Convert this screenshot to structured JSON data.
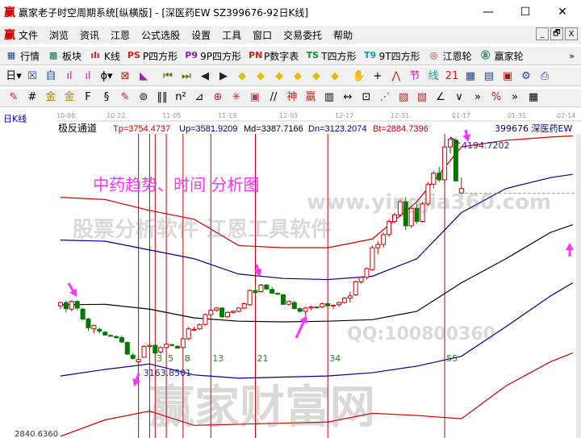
{
  "window": {
    "logo": "赢",
    "title": "赢家老子时空周期系统[纵横版] - [深医药EW  SZ399676-92日K线]",
    "minimize": "—",
    "maximize": "☐",
    "close": "✕"
  },
  "menu": {
    "items": [
      "文件",
      "浏览",
      "资讯",
      "江恩",
      "公式选股",
      "设置",
      "工具",
      "窗口",
      "交易委托",
      "帮助"
    ],
    "mdi": [
      "_",
      "🗗",
      "X"
    ]
  },
  "toolbar1": [
    {
      "icon": "quote-grid-icon",
      "glyph": "▦",
      "label": "行情",
      "color": "#224488"
    },
    {
      "icon": "sector-icon",
      "glyph": "▩",
      "label": "板块",
      "color": "#117744"
    },
    {
      "icon": "kline-icon",
      "glyph": "ılı",
      "label": "K线",
      "color": "#cc2222"
    },
    {
      "icon": "ps-icon",
      "glyph": "PS",
      "label": "P四方形",
      "color": "#cc2222"
    },
    {
      "icon": "p9-icon",
      "glyph": "P9",
      "label": "9P四方形",
      "color": "#8822aa"
    },
    {
      "icon": "pn-icon",
      "glyph": "PN",
      "label": "P数字表",
      "color": "#cc2222"
    },
    {
      "icon": "ts-icon",
      "glyph": "TS",
      "label": "T四方形",
      "color": "#118833"
    },
    {
      "icon": "t9-icon",
      "glyph": "T9",
      "label": "9T四方形",
      "color": "#1199aa"
    },
    {
      "icon": "gann-wheel-icon",
      "glyph": "◎",
      "label": "江恩轮",
      "color": "#aa3322"
    },
    {
      "icon": "yingjia-wheel-icon",
      "glyph": "Ⓑ",
      "label": "赢家轮",
      "color": "#117744"
    }
  ],
  "toolbar1_more": "»",
  "toolbar2": [
    {
      "icon": "period-day-icon",
      "glyph": "日▾",
      "color": "#000"
    },
    {
      "icon": "scale-icon",
      "glyph": "☒",
      "color": "#2244aa"
    },
    {
      "icon": "self-icon",
      "glyph": "自",
      "color": "#2244aa"
    },
    {
      "icon": "bars3-icon",
      "glyph": "ıl",
      "color": "#cc22aa"
    },
    {
      "icon": "bars9-icon",
      "glyph": "ıl",
      "color": "#cc22aa"
    },
    {
      "icon": "candle-type-icon",
      "glyph": "ɸ▾",
      "color": "#000"
    },
    {
      "icon": "extreme-icon",
      "glyph": "⊠",
      "color": "#cc2222"
    },
    {
      "icon": "triangle-icon",
      "glyph": "◣",
      "color": "#aa22aa"
    },
    {
      "icon": "first-icon",
      "glyph": "⏮",
      "color": "#556b00"
    },
    {
      "icon": "last-icon",
      "glyph": "⏭",
      "color": "#556b00"
    },
    {
      "icon": "left-icon",
      "glyph": "◀",
      "color": "#222"
    },
    {
      "icon": "right-icon",
      "glyph": "▶",
      "color": "#222"
    },
    {
      "icon": "diamond-left-icon",
      "glyph": "◆",
      "color": "#e0c000"
    },
    {
      "icon": "diamond-right-icon",
      "glyph": "◆",
      "color": "#e0c000"
    },
    {
      "icon": "diamond-h-icon",
      "glyph": "◆",
      "color": "#e0c000"
    },
    {
      "icon": "diamond-in-icon",
      "glyph": "◆",
      "color": "#e0c000"
    },
    {
      "icon": "diamond-out-icon",
      "glyph": "◆",
      "color": "#e0c000"
    },
    {
      "icon": "diamond-v-icon",
      "glyph": "◆",
      "color": "#e0c000"
    },
    {
      "icon": "hand-icon",
      "glyph": "✋",
      "color": "#000"
    },
    {
      "icon": "crosshair-icon",
      "glyph": "+",
      "color": "#000"
    },
    {
      "icon": "line-icon",
      "glyph": "⋀",
      "color": "#cc2222"
    },
    {
      "icon": "node-icon",
      "glyph": "节",
      "color": "#aa22aa"
    },
    {
      "icon": "draw-icon",
      "glyph": "线",
      "color": "#11aa88"
    },
    {
      "icon": "calendar-icon",
      "glyph": "21",
      "color": "#cc2222"
    },
    {
      "icon": "calculator-icon",
      "glyph": "▦",
      "color": "#224488"
    },
    {
      "icon": "notes-icon",
      "glyph": "▤",
      "color": "#224488"
    },
    {
      "icon": "save-icon",
      "glyph": "▣",
      "color": "#aa1111"
    },
    {
      "icon": "network-icon",
      "glyph": "⚙",
      "color": "#224488"
    },
    {
      "icon": "printer-icon",
      "glyph": "⎙",
      "color": "#224488"
    }
  ],
  "toolbar3": [
    {
      "icon": "pen-icon",
      "glyph": "✎",
      "color": "#cc2222"
    },
    {
      "icon": "grid-lines-icon",
      "glyph": "#",
      "color": "#000"
    },
    {
      "icon": "gold-icon",
      "glyph": "金",
      "color": "#aa8800"
    },
    {
      "icon": "gold2-icon",
      "glyph": "金",
      "color": "#aa8800"
    },
    {
      "icon": "f-icon",
      "glyph": "F",
      "color": "#000"
    },
    {
      "icon": "spiral-icon",
      "glyph": "§",
      "color": "#000"
    },
    {
      "icon": "pen2-icon",
      "glyph": "✎",
      "color": "#cc2222"
    },
    {
      "icon": "circle-icon",
      "glyph": "⊜",
      "color": "#000"
    },
    {
      "icon": "lines-icon",
      "glyph": "‖‖",
      "color": "#000"
    },
    {
      "icon": "n2-icon",
      "glyph": "n²",
      "color": "#000"
    },
    {
      "icon": "fan-icon",
      "glyph": "⊿",
      "color": "#000"
    },
    {
      "icon": "target-icon",
      "glyph": "⊕",
      "color": "#cc2222"
    },
    {
      "icon": "star-icon",
      "glyph": "✳",
      "color": "#cc2222"
    },
    {
      "icon": "square-icon",
      "glyph": "▣",
      "color": "#aa4444"
    },
    {
      "icon": "slash-icon",
      "glyph": "//",
      "color": "#000"
    },
    {
      "icon": "shen-icon",
      "glyph": "神",
      "color": "#cc2222"
    },
    {
      "icon": "ying-icon",
      "glyph": "赢",
      "color": "#cc2222"
    },
    {
      "icon": "ruler-icon",
      "glyph": "▥",
      "color": "#000"
    },
    {
      "icon": "span-icon",
      "glyph": "↔",
      "color": "#000"
    },
    {
      "icon": "box-icon",
      "glyph": "⊡",
      "color": "#000"
    },
    {
      "icon": "fan-red-icon",
      "glyph": "⋰",
      "color": "#cc2222"
    },
    {
      "icon": "grid-red-icon",
      "glyph": "▨",
      "color": "#cc2222"
    },
    {
      "icon": "grid-red2-icon",
      "glyph": "▧",
      "color": "#cc2222"
    },
    {
      "icon": "angle-icon",
      "glyph": "∠",
      "color": "#000"
    },
    {
      "icon": "wave-icon",
      "glyph": "∨",
      "color": "#000"
    }
  ],
  "toolbar3_more": [
    "»",
    "%",
    "»",
    "▦"
  ],
  "chart": {
    "period_label": "日K线",
    "indicator_name": "极反通道",
    "params": [
      {
        "text": "Tp=3754.4737",
        "color": "#cc0000"
      },
      {
        "text": "Up=3581.9209",
        "color": "#000080"
      },
      {
        "text": "Md=3387.7166",
        "color": "#000000"
      },
      {
        "text": "Dn=3123.2074",
        "color": "#000080"
      },
      {
        "text": "Bt=2884.7396",
        "color": "#cc0000"
      }
    ],
    "symbol": "399676  深医药EW",
    "annotation": "中药趋势、时间 分析图",
    "high_label": "4194.7202",
    "low_label": "3163.8501",
    "bottom_price": "2840.6360",
    "fib_labels": [
      "3",
      "5",
      "8",
      "13",
      "21",
      "34",
      "55"
    ],
    "watermarks": [
      "赢家财富网",
      "股票分析软件 江恩工具软件",
      "www.yingjia360.com",
      "QQ:100800360"
    ],
    "colors": {
      "up": "#cc0000",
      "down": "#007700",
      "arrow": "#ff33ff",
      "fib_line": "#cc0000"
    }
  },
  "chart_data": {
    "type": "candlestick",
    "x_ticks": [
      {
        "i": 0,
        "label": "10-08"
      },
      {
        "i": 9,
        "label": "10-22"
      },
      {
        "i": 19,
        "label": "11-05"
      },
      {
        "i": 29,
        "label": "11-19"
      },
      {
        "i": 40,
        "label": "12-03"
      },
      {
        "i": 50,
        "label": "12-17"
      },
      {
        "i": 60,
        "label": "12-31"
      },
      {
        "i": 71,
        "label": "01-17"
      },
      {
        "i": 81,
        "label": "01-31"
      },
      {
        "i": 91,
        "label": "02-14"
      }
    ],
    "price_range": [
      2840.636,
      4210
    ],
    "fib_start_index": 14,
    "fib_offsets": [
      0,
      2,
      3,
      5,
      8,
      13,
      21,
      34,
      55
    ],
    "ohlc": [
      [
        3425,
        3445,
        3410,
        3440
      ],
      [
        3440,
        3448,
        3395,
        3412
      ],
      [
        3410,
        3450,
        3400,
        3445
      ],
      [
        3445,
        3450,
        3405,
        3415
      ],
      [
        3410,
        3415,
        3360,
        3365
      ],
      [
        3365,
        3370,
        3310,
        3325
      ],
      [
        3320,
        3340,
        3300,
        3335
      ],
      [
        3318,
        3325,
        3300,
        3310
      ],
      [
        3305,
        3310,
        3290,
        3292
      ],
      [
        3290,
        3295,
        3285,
        3288
      ],
      [
        3285,
        3290,
        3275,
        3280
      ],
      [
        3280,
        3290,
        3255,
        3260
      ],
      [
        3258,
        3262,
        3200,
        3205
      ],
      [
        3200,
        3210,
        3180,
        3185
      ],
      [
        3170,
        3195,
        3163.85,
        3180
      ],
      [
        3190,
        3245,
        3188,
        3240
      ],
      [
        3240,
        3250,
        3225,
        3245
      ],
      [
        3245,
        3250,
        3200,
        3210
      ],
      [
        3215,
        3240,
        3205,
        3235
      ],
      [
        3235,
        3255,
        3230,
        3250
      ],
      [
        3248,
        3252,
        3240,
        3245
      ],
      [
        3240,
        3245,
        3230,
        3232
      ],
      [
        3235,
        3280,
        3230,
        3275
      ],
      [
        3275,
        3330,
        3268,
        3320
      ],
      [
        3315,
        3330,
        3310,
        3318
      ],
      [
        3320,
        3345,
        3315,
        3340
      ],
      [
        3340,
        3390,
        3335,
        3385
      ],
      [
        3385,
        3410,
        3380,
        3405
      ],
      [
        3405,
        3420,
        3398,
        3415
      ],
      [
        3415,
        3418,
        3370,
        3375
      ],
      [
        3375,
        3400,
        3370,
        3395
      ],
      [
        3395,
        3405,
        3390,
        3400
      ],
      [
        3400,
        3420,
        3395,
        3415
      ],
      [
        3415,
        3440,
        3410,
        3435
      ],
      [
        3430,
        3500,
        3425,
        3495
      ],
      [
        3495,
        3515,
        3480,
        3485
      ],
      [
        3490,
        3525,
        3485,
        3520
      ],
      [
        3520,
        3525,
        3498,
        3502
      ],
      [
        3500,
        3510,
        3480,
        3482
      ],
      [
        3482,
        3486,
        3475,
        3478
      ],
      [
        3475,
        3480,
        3430,
        3432
      ],
      [
        3432,
        3450,
        3425,
        3445
      ],
      [
        3440,
        3448,
        3410,
        3412
      ],
      [
        3412,
        3418,
        3395,
        3400
      ],
      [
        3400,
        3420,
        3380,
        3415
      ],
      [
        3415,
        3425,
        3405,
        3420
      ],
      [
        3420,
        3422,
        3412,
        3418
      ],
      [
        3420,
        3440,
        3415,
        3435
      ],
      [
        3435,
        3440,
        3420,
        3425
      ],
      [
        3425,
        3430,
        3410,
        3428
      ],
      [
        3430,
        3445,
        3420,
        3440
      ],
      [
        3440,
        3465,
        3435,
        3460
      ],
      [
        3460,
        3490,
        3440,
        3470
      ],
      [
        3475,
        3540,
        3470,
        3535
      ],
      [
        3535,
        3560,
        3525,
        3555
      ],
      [
        3555,
        3600,
        3545,
        3595
      ],
      [
        3590,
        3700,
        3585,
        3690
      ],
      [
        3690,
        3720,
        3660,
        3705
      ],
      [
        3705,
        3760,
        3690,
        3750
      ],
      [
        3750,
        3820,
        3740,
        3810
      ],
      [
        3810,
        3850,
        3800,
        3840
      ],
      [
        3840,
        3910,
        3830,
        3900
      ],
      [
        3900,
        3920,
        3770,
        3790
      ],
      [
        3790,
        3880,
        3780,
        3870
      ],
      [
        3870,
        3890,
        3800,
        3810
      ],
      [
        3810,
        3900,
        3805,
        3890
      ],
      [
        3890,
        3990,
        3880,
        3980
      ],
      [
        3980,
        4040,
        3960,
        4030
      ],
      [
        4030,
        4060,
        3990,
        4000
      ],
      [
        4000,
        4180,
        3980,
        4150
      ],
      [
        4150,
        4194.72,
        4120,
        4185
      ],
      [
        4180,
        4190,
        3990,
        3995
      ],
      [
        3940,
        4010,
        3935,
        3960
      ]
    ],
    "bands": {
      "index": [
        0,
        8,
        16,
        24,
        32,
        40,
        48,
        56,
        64,
        72,
        80,
        88,
        92
      ],
      "series": [
        {
          "key": "Tp",
          "color": "#cc0000",
          "values": [
            3920,
            3910,
            3860,
            3820,
            3700,
            3690,
            3690,
            3730,
            3900,
            4150,
            4180,
            4195,
            4200
          ]
        },
        {
          "key": "Up",
          "color": "#000080",
          "values": [
            3725,
            3720,
            3680,
            3640,
            3570,
            3550,
            3545,
            3560,
            3640,
            3850,
            3960,
            4010,
            4025
          ]
        },
        {
          "key": "Md",
          "color": "#000000",
          "values": [
            3430,
            3432,
            3410,
            3370,
            3355,
            3352,
            3355,
            3362,
            3400,
            3530,
            3640,
            3760,
            3795
          ]
        },
        {
          "key": "Dn",
          "color": "#000080",
          "values": [
            3105,
            3135,
            3160,
            3110,
            3095,
            3100,
            3105,
            3120,
            3150,
            3195,
            3330,
            3470,
            3530
          ]
        },
        {
          "key": "Bt",
          "color": "#cc0000",
          "values": [
            2830,
            2905,
            2945,
            2880,
            2885,
            2890,
            2895,
            2935,
            2925,
            2910,
            3060,
            3170,
            3210
          ]
        }
      ]
    },
    "reference_price": 3960
  }
}
